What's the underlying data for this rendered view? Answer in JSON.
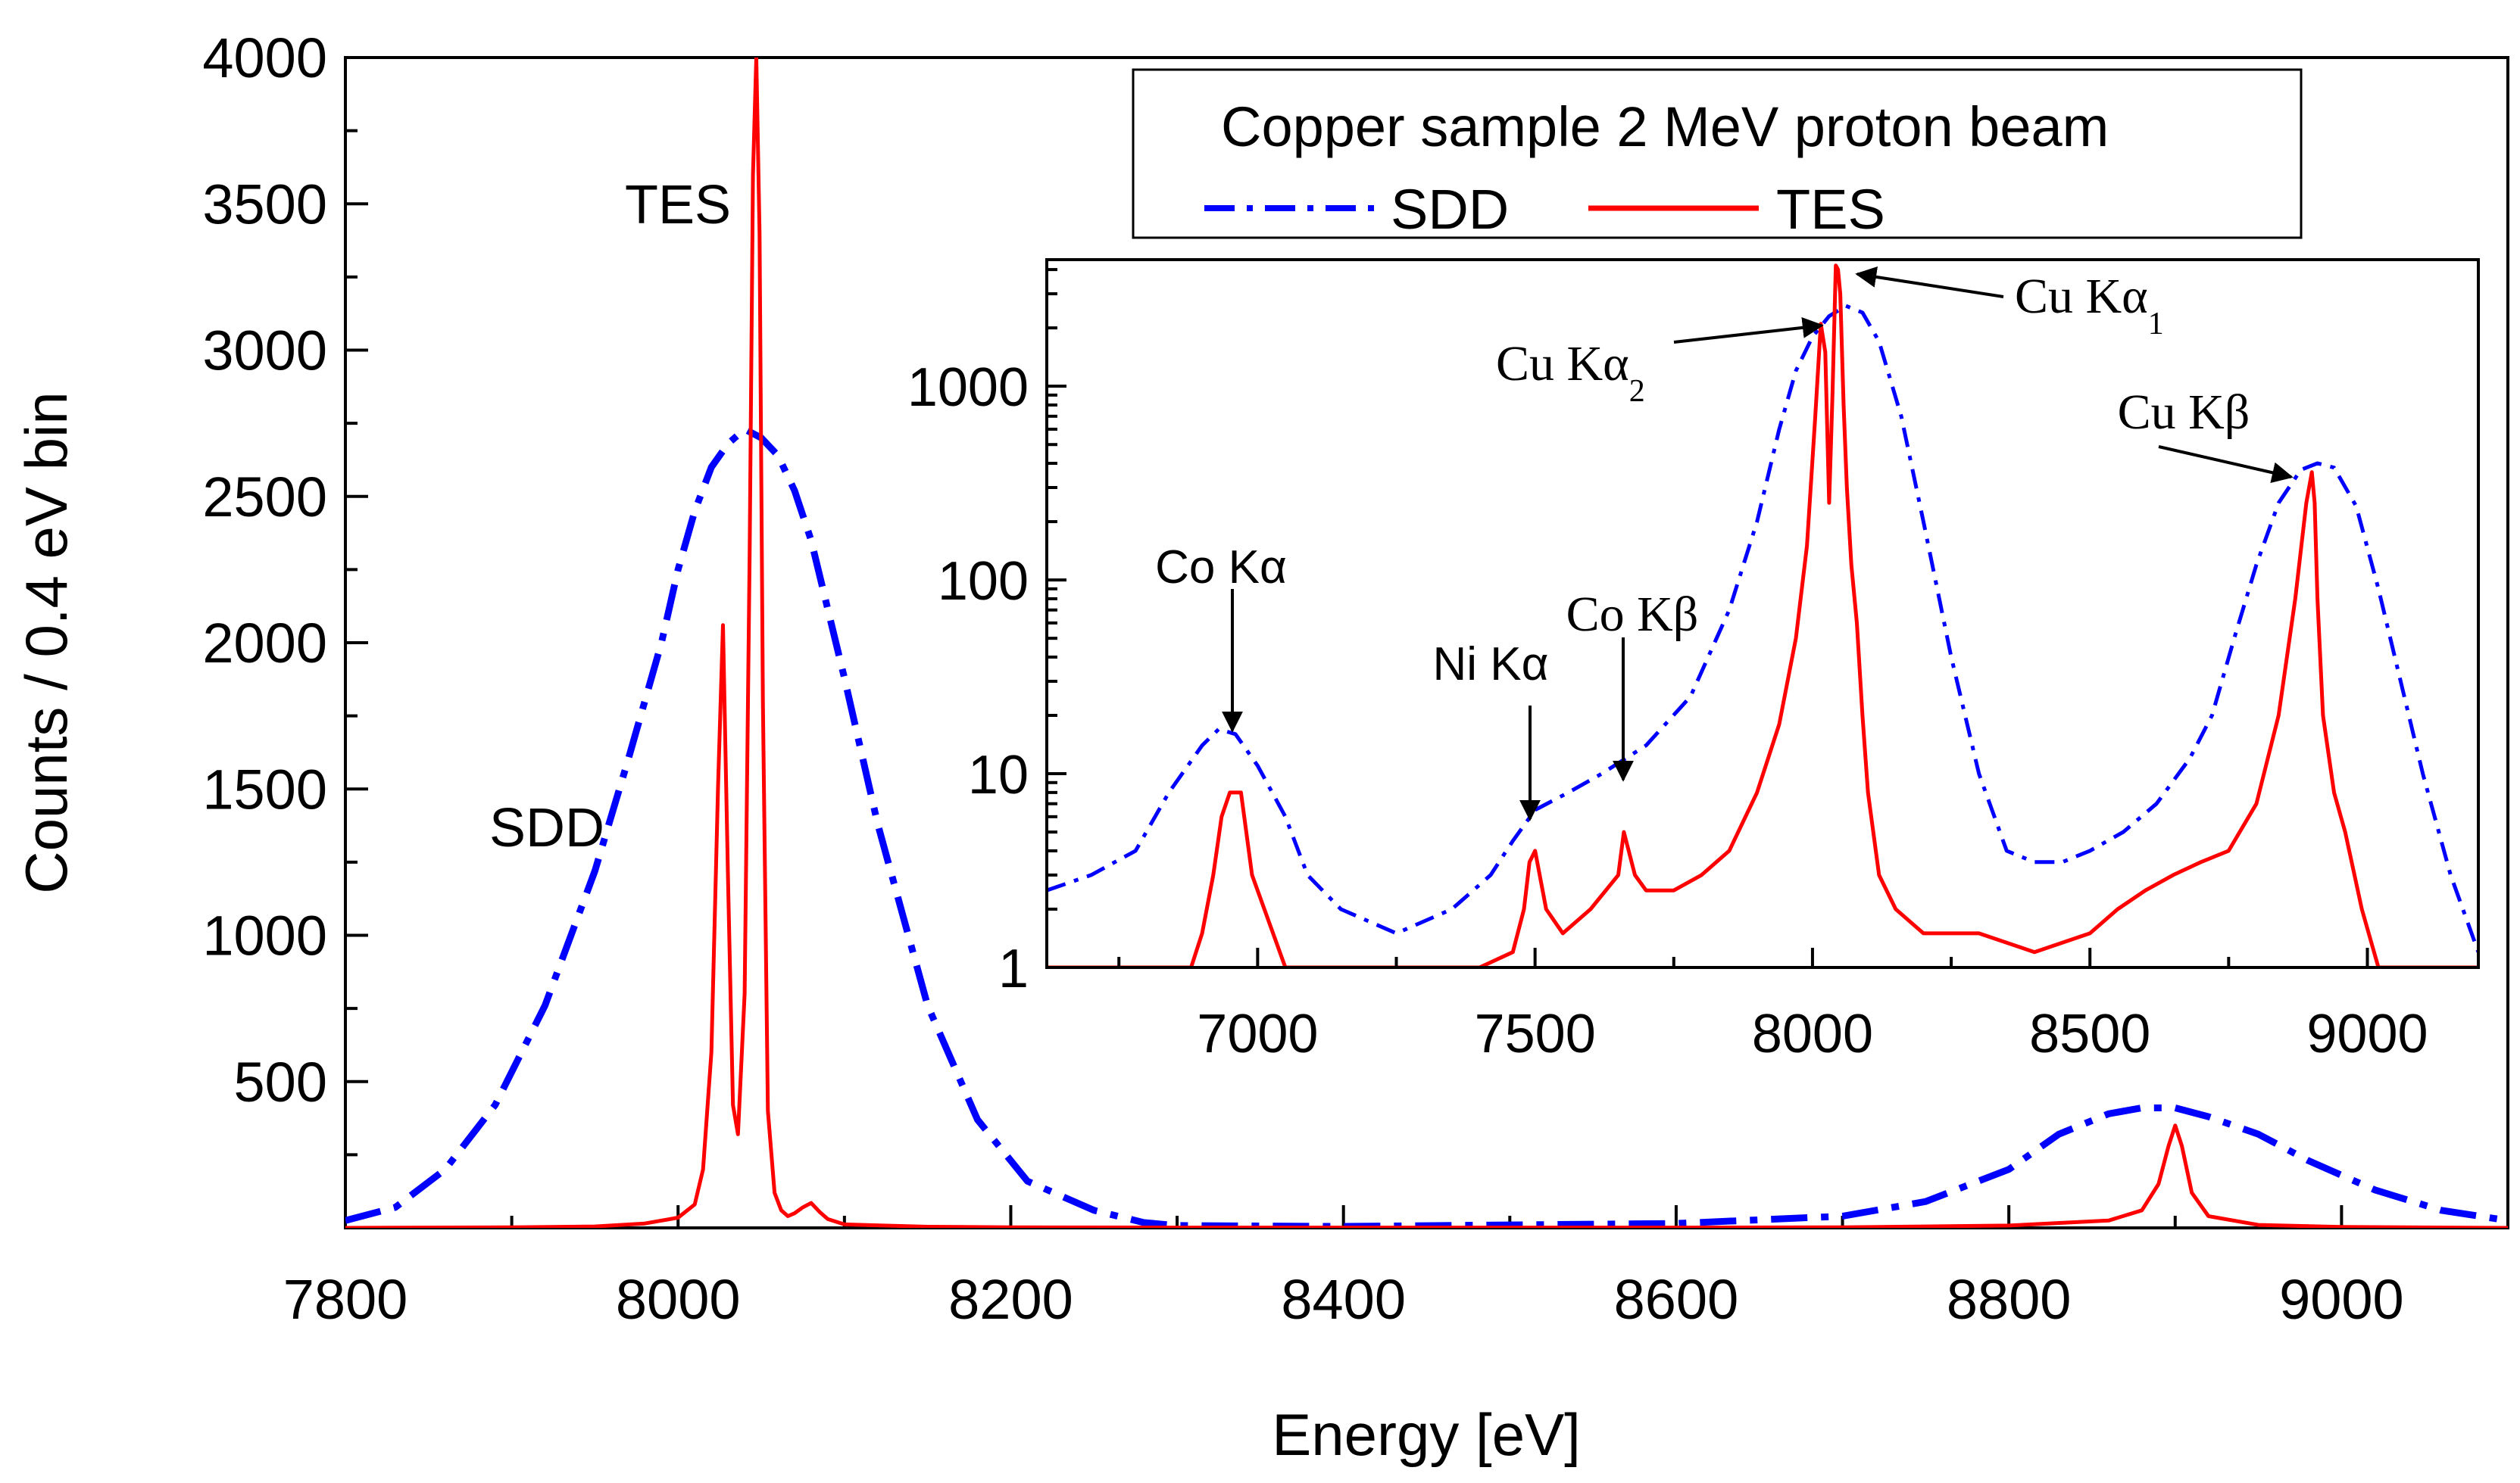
{
  "chart_data": [
    {
      "id": "main",
      "type": "line",
      "xlabel": "Energy [eV]",
      "ylabel": "Counts / 0.4 eV bin",
      "xlim": [
        7800,
        9100
      ],
      "ylim": [
        0,
        4000
      ],
      "xticks": [
        7800,
        8000,
        8200,
        8400,
        8600,
        8800,
        9000
      ],
      "yticks": [
        500,
        1000,
        1500,
        2000,
        2500,
        3000,
        3500,
        4000
      ],
      "grid": false,
      "series": [
        {
          "name": "SDD",
          "color": "#0000ff",
          "style": "dash-dot",
          "x": [
            7800,
            7830,
            7860,
            7890,
            7920,
            7950,
            7970,
            7990,
            8000,
            8010,
            8020,
            8030,
            8040,
            8050,
            8060,
            8070,
            8080,
            8100,
            8120,
            8150,
            8180,
            8210,
            8250,
            8280,
            8300,
            8400,
            8500,
            8600,
            8700,
            8750,
            8800,
            8830,
            8860,
            8880,
            8900,
            8920,
            8950,
            8980,
            9020,
            9060,
            9100
          ],
          "y": [
            25,
            70,
            200,
            420,
            760,
            1220,
            1600,
            2000,
            2250,
            2450,
            2600,
            2680,
            2730,
            2700,
            2640,
            2520,
            2350,
            1880,
            1380,
            760,
            370,
            160,
            60,
            18,
            8,
            5,
            10,
            15,
            40,
            90,
            200,
            320,
            390,
            410,
            410,
            380,
            320,
            230,
            130,
            60,
            25
          ]
        },
        {
          "name": "TES",
          "color": "#ff0000",
          "style": "solid",
          "x": [
            7800,
            7900,
            7950,
            7980,
            8000,
            8010,
            8015,
            8020,
            8024,
            8027,
            8030,
            8033,
            8036,
            8040,
            8043,
            8045,
            8047,
            8049,
            8051,
            8054,
            8058,
            8062,
            8066,
            8070,
            8075,
            8080,
            8085,
            8090,
            8100,
            8150,
            8200,
            8300,
            8400,
            8500,
            8600,
            8700,
            8800,
            8860,
            8880,
            8890,
            8896,
            8900,
            8904,
            8910,
            8920,
            8950,
            9000,
            9100
          ],
          "y": [
            0,
            2,
            5,
            15,
            35,
            80,
            200,
            600,
            1500,
            2060,
            1200,
            420,
            320,
            800,
            2300,
            3600,
            4000,
            3400,
            1800,
            400,
            120,
            60,
            40,
            50,
            70,
            85,
            55,
            30,
            12,
            4,
            2,
            1,
            1,
            1,
            1,
            2,
            8,
            25,
            60,
            150,
            280,
            350,
            280,
            120,
            40,
            10,
            3,
            0
          ]
        }
      ],
      "annotations": [
        {
          "text": "TES"
        },
        {
          "text": "SDD"
        }
      ]
    },
    {
      "id": "inset",
      "type": "line",
      "scale": "log",
      "xlim": [
        6620,
        9200
      ],
      "ylim": [
        1,
        4500
      ],
      "xticks": [
        7000,
        7500,
        8000,
        8500,
        9000
      ],
      "yticks": [
        1,
        10,
        100,
        1000
      ],
      "legend": {
        "title": "Copper sample 2 MeV proton beam",
        "entries": [
          "SDD",
          "TES"
        ],
        "placement": "top-right"
      },
      "series": [
        {
          "name": "SDD",
          "color": "#0000ff",
          "style": "dash-dot",
          "x": [
            6620,
            6700,
            6780,
            6840,
            6900,
            6930,
            6960,
            7000,
            7050,
            7090,
            7150,
            7250,
            7350,
            7420,
            7460,
            7500,
            7560,
            7620,
            7700,
            7780,
            7850,
            7900,
            7940,
            7970,
            8000,
            8030,
            8060,
            8090,
            8120,
            8160,
            8200,
            8250,
            8300,
            8350,
            8400,
            8450,
            8500,
            8560,
            8620,
            8680,
            8720,
            8760,
            8800,
            8840,
            8880,
            8910,
            8940,
            8980,
            9020,
            9060,
            9100,
            9150,
            9200
          ],
          "y": [
            2.5,
            3,
            4,
            8,
            14,
            17,
            16,
            11,
            6,
            3,
            2,
            1.5,
            2,
            3,
            4.5,
            6.5,
            8,
            10,
            14,
            25,
            70,
            200,
            600,
            1200,
            1800,
            2300,
            2600,
            2400,
            1700,
            700,
            200,
            40,
            10,
            4,
            3.5,
            3.5,
            4,
            5,
            7,
            12,
            20,
            50,
            120,
            250,
            370,
            400,
            380,
            240,
            90,
            30,
            10,
            3,
            1.2
          ]
        },
        {
          "name": "TES",
          "color": "#ff0000",
          "style": "solid",
          "x": [
            6620,
            6880,
            6900,
            6920,
            6935,
            6950,
            6970,
            6990,
            7050,
            7400,
            7460,
            7480,
            7490,
            7500,
            7520,
            7550,
            7600,
            7650,
            7660,
            7680,
            7700,
            7750,
            7800,
            7850,
            7900,
            7940,
            7970,
            7990,
            8005,
            8015,
            8023,
            8030,
            8036,
            8042,
            8046,
            8050,
            8056,
            8062,
            8070,
            8080,
            8090,
            8100,
            8120,
            8150,
            8200,
            8260,
            8300,
            8400,
            8500,
            8550,
            8600,
            8650,
            8700,
            8750,
            8800,
            8840,
            8870,
            8890,
            8900,
            8905,
            8910,
            8920,
            8940,
            8960,
            8990,
            9020,
            9200
          ],
          "y": [
            1,
            1,
            1.5,
            3,
            6,
            8,
            8,
            3,
            1,
            1,
            1.2,
            2,
            3.5,
            4,
            2,
            1.5,
            2,
            3,
            5,
            3,
            2.5,
            2.5,
            3,
            4,
            8,
            18,
            50,
            150,
            700,
            2100,
            1500,
            250,
            900,
            4200,
            4000,
            3000,
            800,
            300,
            120,
            60,
            20,
            8,
            3,
            2,
            1.5,
            1.5,
            1.5,
            1.2,
            1.5,
            2,
            2.5,
            3,
            3.5,
            4,
            7,
            20,
            80,
            250,
            360,
            250,
            80,
            20,
            8,
            5,
            2,
            1,
            1
          ]
        }
      ],
      "annotations": [
        {
          "text": "Co Kα"
        },
        {
          "text": "Ni Kα"
        },
        {
          "text": "Co Kβ"
        },
        {
          "text": "Cu Kα",
          "subscript": "2"
        },
        {
          "text": "Cu Kα",
          "subscript": "1"
        },
        {
          "text": "Cu Kβ"
        }
      ]
    }
  ]
}
